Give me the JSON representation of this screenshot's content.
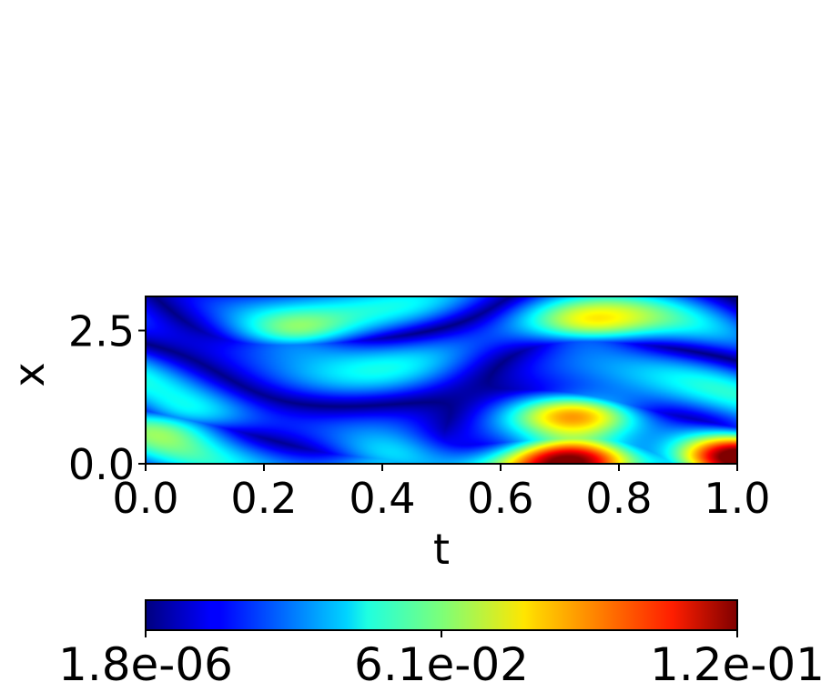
{
  "chart_data": {
    "type": "heatmap",
    "title": "",
    "xlabel": "t",
    "ylabel": "x",
    "xlim": [
      0.0,
      1.0
    ],
    "ylim": [
      0.0,
      3.14
    ],
    "x_ticks": [
      "0.0",
      "0.2",
      "0.4",
      "0.6",
      "0.8",
      "1.0"
    ],
    "y_ticks": [
      "0.0",
      "2.5"
    ],
    "colormap": "jet",
    "colorbar": {
      "orientation": "horizontal",
      "location": "bottom",
      "min": 1.8e-06,
      "max": 0.12,
      "ticks": [
        "1.8e-06",
        "6.1e-02",
        "1.2e-01"
      ]
    },
    "features": [
      {
        "t": 0.73,
        "x": 0.9,
        "level": 0.6,
        "note": "yellow peak"
      },
      {
        "t": 0.72,
        "x": 0.05,
        "level": 0.85,
        "note": "orange-red band near x=0"
      },
      {
        "t": 1.0,
        "x": 0.1,
        "level": 0.9,
        "note": "red corner"
      },
      {
        "t": 0.25,
        "x": 2.45,
        "level": 0.35
      },
      {
        "t": 0.75,
        "x": 2.6,
        "level": 0.38
      },
      {
        "t": 0.05,
        "x": 0.8,
        "level": 0.3
      },
      {
        "t": 0.42,
        "x": 0.1,
        "level": 0.35
      }
    ]
  }
}
